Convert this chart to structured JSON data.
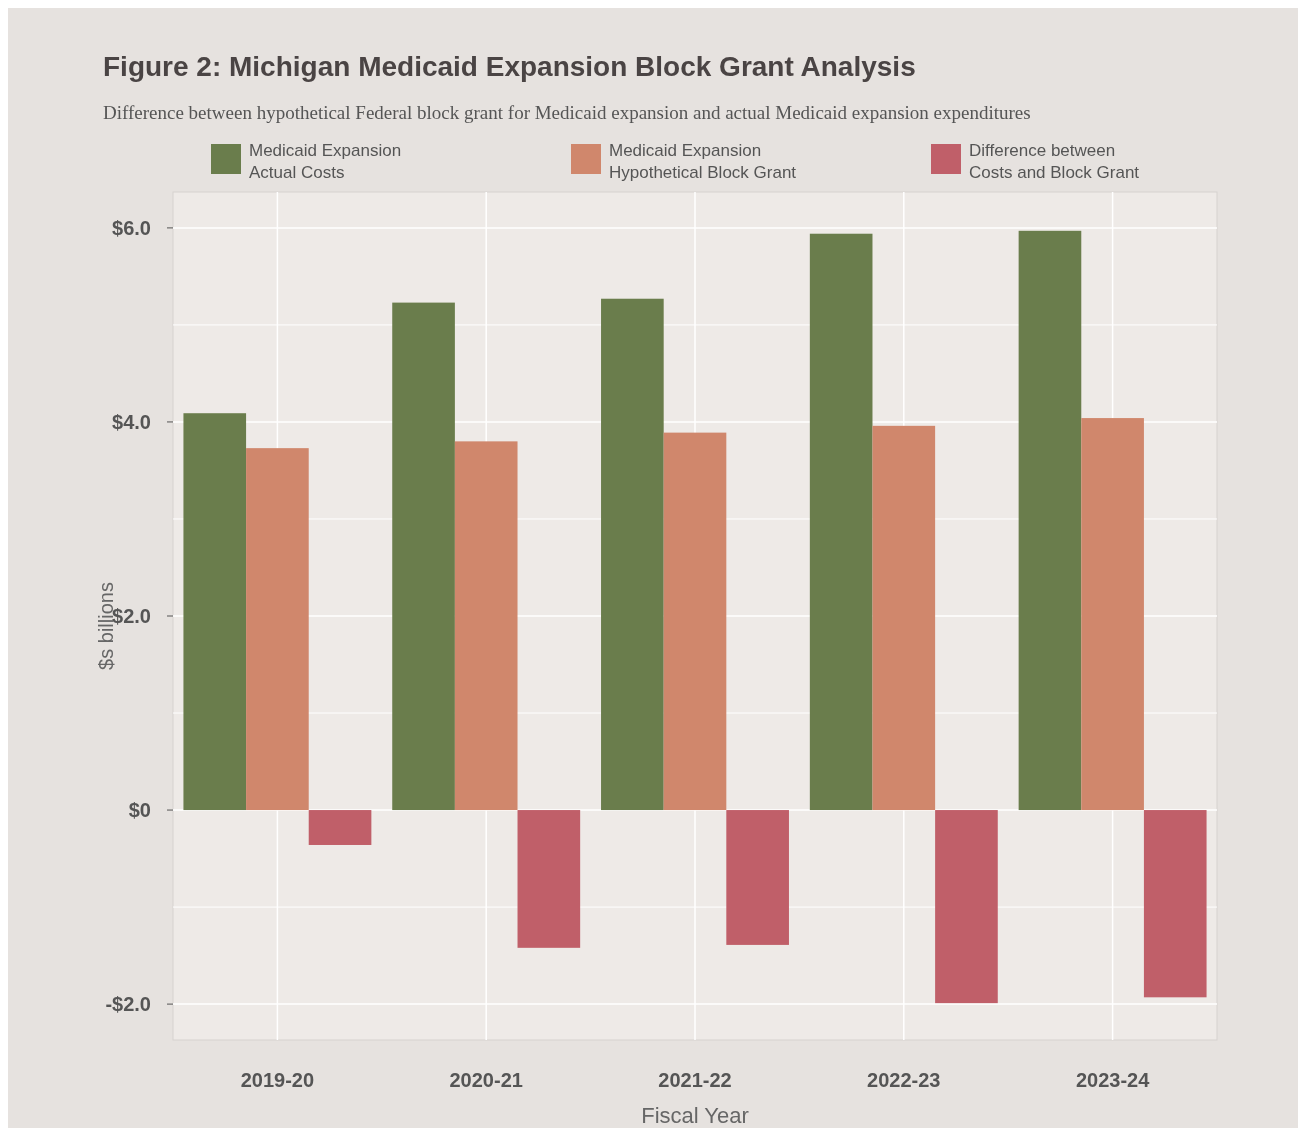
{
  "chart_data": {
    "type": "bar",
    "title": "Figure 2: Michigan Medicaid Expansion Block Grant Analysis",
    "subtitle": "Difference between hypothetical Federal block grant for Medicaid expansion and actual Medicaid expansion expenditures",
    "xlabel": "Fiscal Year",
    "ylabel": "$s billions",
    "categories": [
      "2019-20",
      "2020-21",
      "2021-22",
      "2022-23",
      "2023-24"
    ],
    "series": [
      {
        "name": "Medicaid Expansion Actual Costs",
        "color": "#6a7d4c",
        "values": [
          4.09,
          5.23,
          5.27,
          5.94,
          5.97
        ]
      },
      {
        "name": "Medicaid Expansion Hypothetical Block Grant",
        "color": "#d0876c",
        "values": [
          3.73,
          3.8,
          3.89,
          3.96,
          4.04
        ]
      },
      {
        "name": "Difference between Costs and Block Grant",
        "color": "#c05f69",
        "values": [
          -0.36,
          -1.42,
          -1.39,
          -1.99,
          -1.93
        ]
      }
    ],
    "ylim": [
      -2.37,
      6.37
    ],
    "yticks": [
      {
        "value": -2,
        "label": "-$2.0"
      },
      {
        "value": -1,
        "label": null
      },
      {
        "value": 0,
        "label": "$0"
      },
      {
        "value": 1,
        "label": null
      },
      {
        "value": 2,
        "label": "$2.0"
      },
      {
        "value": 3,
        "label": null
      },
      {
        "value": 4,
        "label": "$4.0"
      },
      {
        "value": 5,
        "label": null
      },
      {
        "value": 6,
        "label": "$6.0"
      }
    ],
    "grid": true,
    "legend": "top"
  }
}
